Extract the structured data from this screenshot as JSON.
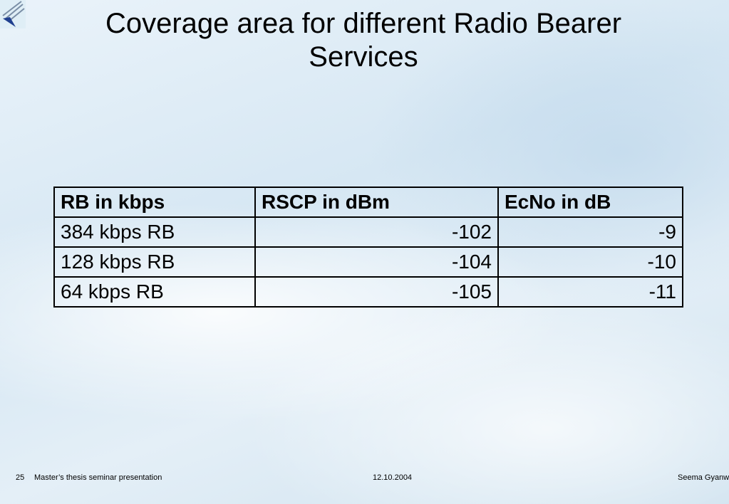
{
  "slide": {
    "title": "Coverage area for different Radio Bearer Services",
    "table": {
      "header": [
        "RB in kbps",
        "RSCP in dBm",
        "EcNo in dB"
      ],
      "rows": [
        [
          "384 kbps RB",
          -102,
          -9
        ],
        [
          "128 kbps RB",
          -104,
          -10
        ],
        [
          "64 kbps RB",
          -105,
          -11
        ]
      ]
    },
    "footer": {
      "page": "25",
      "text": "Master’s thesis seminar presentation",
      "date": "12.10.2004",
      "author": "Seema Gyanw"
    }
  }
}
